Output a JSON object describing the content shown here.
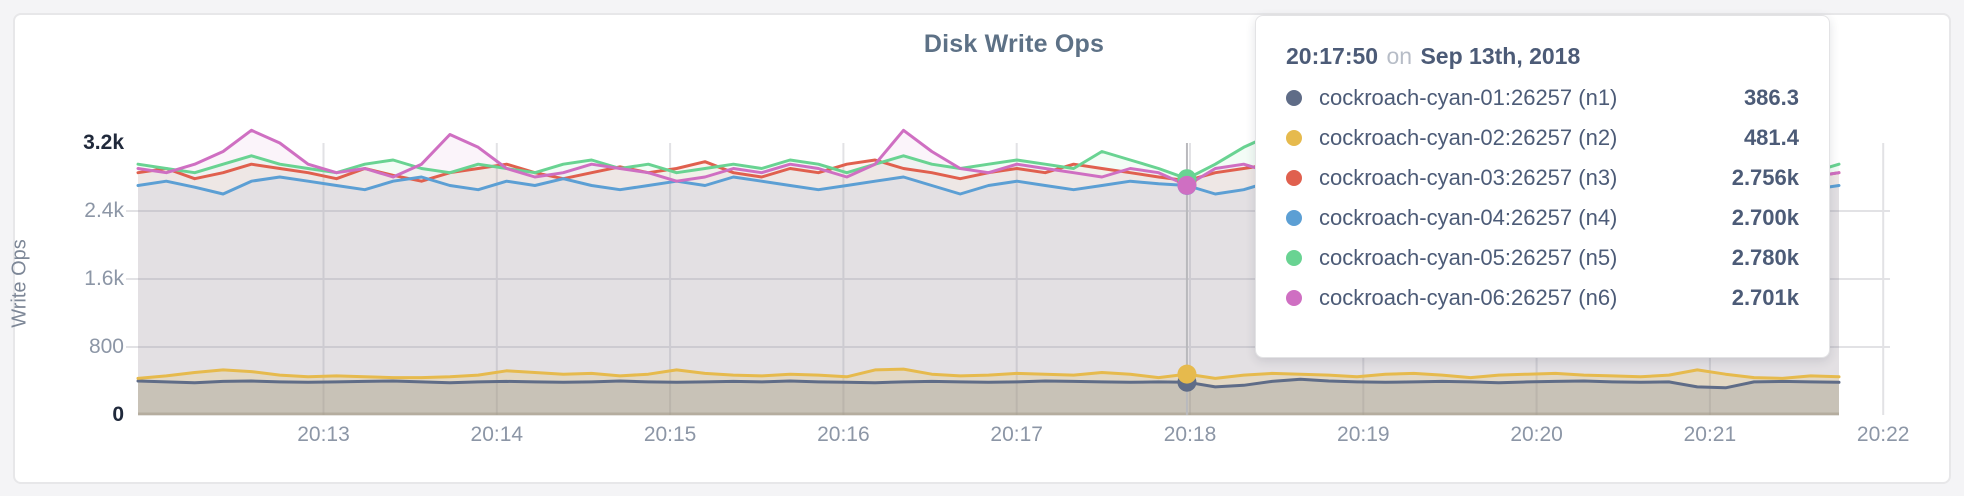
{
  "panel": {
    "background": "#ffffff",
    "border_color": "#e7e7e9",
    "page_background": "#f4f4f6"
  },
  "chart_data": {
    "type": "line",
    "title": "Disk Write Ops",
    "ylabel": "Write Ops",
    "xlabel": "",
    "grid": true,
    "legend_position": "tooltip",
    "ylim": [
      0,
      3200
    ],
    "x_ticks": [
      "20:13",
      "20:14",
      "20:15",
      "20:16",
      "20:17",
      "20:18",
      "20:19",
      "20:20",
      "20:21",
      "20:22"
    ],
    "y_ticks": [
      {
        "label": "0",
        "value": 0,
        "emphasis": true
      },
      {
        "label": "800",
        "value": 800,
        "emphasis": false
      },
      {
        "label": "1.6k",
        "value": 1600,
        "emphasis": false
      },
      {
        "label": "2.4k",
        "value": 2400,
        "emphasis": false
      },
      {
        "label": "3.2k",
        "value": 3200,
        "emphasis": true
      }
    ],
    "sample_interval_seconds": 10,
    "hover_index": 37,
    "hover_guideline_color": "#b9b9bd",
    "series": [
      {
        "name": "cockroach-cyan-01:26257 (n1)",
        "color": "#5f6c87",
        "fill_opacity": 0.2,
        "values": [
          400,
          390,
          380,
          395,
          400,
          390,
          385,
          390,
          395,
          400,
          390,
          380,
          390,
          395,
          390,
          385,
          390,
          400,
          390,
          385,
          390,
          395,
          390,
          400,
          390,
          385,
          380,
          390,
          395,
          390,
          385,
          390,
          400,
          395,
          390,
          385,
          390,
          386.3,
          330,
          350,
          395,
          420,
          400,
          390,
          385,
          390,
          395,
          390,
          380,
          390,
          395,
          400,
          390,
          385,
          390,
          330,
          320,
          390,
          395,
          390,
          385
        ]
      },
      {
        "name": "cockroach-cyan-02:26257 (n2)",
        "color": "#e6ba4d",
        "fill_opacity": 0.2,
        "values": [
          430,
          460,
          500,
          530,
          510,
          470,
          450,
          460,
          450,
          440,
          440,
          450,
          470,
          520,
          500,
          480,
          490,
          460,
          480,
          530,
          490,
          470,
          460,
          480,
          470,
          450,
          530,
          540,
          480,
          460,
          470,
          490,
          480,
          470,
          500,
          480,
          440,
          481.4,
          430,
          470,
          490,
          480,
          470,
          450,
          480,
          490,
          470,
          440,
          470,
          480,
          490,
          470,
          460,
          450,
          470,
          530,
          480,
          440,
          430,
          460,
          450
        ]
      },
      {
        "name": "cockroach-cyan-03:26257 (n3)",
        "color": "#e0604e",
        "fill_opacity": 0.08,
        "values": [
          2850,
          2900,
          2780,
          2850,
          2950,
          2900,
          2850,
          2780,
          2900,
          2820,
          2750,
          2850,
          2900,
          2950,
          2850,
          2780,
          2850,
          2920,
          2850,
          2900,
          2980,
          2850,
          2800,
          2900,
          2850,
          2950,
          3000,
          2900,
          2850,
          2780,
          2850,
          2900,
          2850,
          2950,
          2900,
          2850,
          2800,
          2756,
          2850,
          2900,
          2950,
          2850,
          2900,
          2800,
          2850,
          2900,
          2850,
          2780,
          2850,
          2950,
          3050,
          2900,
          2850,
          2900,
          2850,
          2800,
          2850,
          2900,
          2850,
          2800,
          2850
        ]
      },
      {
        "name": "cockroach-cyan-04:26257 (n4)",
        "color": "#5c9fd4",
        "fill_opacity": 0.08,
        "values": [
          2700,
          2750,
          2680,
          2600,
          2750,
          2800,
          2750,
          2700,
          2650,
          2750,
          2800,
          2700,
          2650,
          2750,
          2700,
          2780,
          2700,
          2650,
          2700,
          2750,
          2700,
          2800,
          2750,
          2700,
          2650,
          2700,
          2750,
          2800,
          2700,
          2600,
          2700,
          2750,
          2700,
          2650,
          2700,
          2750,
          2720,
          2700,
          2600,
          2650,
          2750,
          2700,
          2750,
          2800,
          2700,
          2650,
          2700,
          2750,
          2700,
          2650,
          2700,
          2750,
          2800,
          2700,
          2750,
          2700,
          2650,
          2700,
          2600,
          2650,
          2700
        ]
      },
      {
        "name": "cockroach-cyan-05:26257 (n5)",
        "color": "#69d392",
        "fill_opacity": 0.08,
        "values": [
          2950,
          2900,
          2850,
          2950,
          3050,
          2950,
          2900,
          2850,
          2950,
          3000,
          2900,
          2850,
          2950,
          2900,
          2850,
          2950,
          3000,
          2900,
          2950,
          2850,
          2900,
          2950,
          2900,
          3000,
          2950,
          2850,
          2950,
          3050,
          2950,
          2900,
          2950,
          3000,
          2950,
          2900,
          3100,
          3000,
          2900,
          2780,
          2950,
          3150,
          3300,
          3100,
          2950,
          3250,
          3100,
          2950,
          2900,
          2950,
          2850,
          2950,
          3000,
          2900,
          2950,
          2850,
          2950,
          3000,
          2950,
          2900,
          2950,
          2850,
          2950
        ]
      },
      {
        "name": "cockroach-cyan-06:26257 (n6)",
        "color": "#cf6fc2",
        "fill_opacity": 0.08,
        "values": [
          2900,
          2850,
          2950,
          3100,
          3350,
          3200,
          2950,
          2850,
          2900,
          2800,
          2950,
          3300,
          3150,
          2900,
          2800,
          2850,
          2950,
          2900,
          2850,
          2750,
          2800,
          2900,
          2850,
          2950,
          2900,
          2800,
          2950,
          3350,
          3100,
          2900,
          2850,
          2950,
          2900,
          2850,
          2800,
          2900,
          2850,
          2701,
          2900,
          2950,
          2850,
          2750,
          2900,
          2850,
          2950,
          2900,
          2850,
          2750,
          2850,
          2900,
          2950,
          2850,
          2900,
          3050,
          3300,
          3100,
          2950,
          2850,
          2750,
          2800,
          2850
        ]
      }
    ]
  },
  "tooltip": {
    "time": "20:17:50",
    "conjunction": "on",
    "date": "Sep 13th, 2018",
    "rows": [
      {
        "label": "cockroach-cyan-01:26257 (n1)",
        "value": "386.3",
        "color": "#5f6c87"
      },
      {
        "label": "cockroach-cyan-02:26257 (n2)",
        "value": "481.4",
        "color": "#e6ba4d"
      },
      {
        "label": "cockroach-cyan-03:26257 (n3)",
        "value": "2.756k",
        "color": "#e0604e"
      },
      {
        "label": "cockroach-cyan-04:26257 (n4)",
        "value": "2.700k",
        "color": "#5c9fd4"
      },
      {
        "label": "cockroach-cyan-05:26257 (n5)",
        "value": "2.780k",
        "color": "#69d392"
      },
      {
        "label": "cockroach-cyan-06:26257 (n6)",
        "value": "2.701k",
        "color": "#cf6fc2"
      }
    ]
  }
}
